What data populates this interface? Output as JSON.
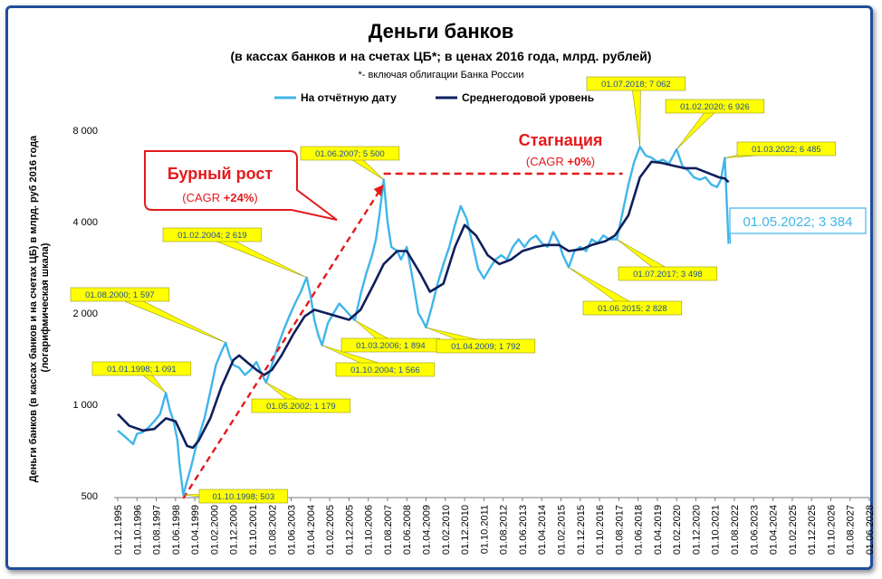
{
  "colors": {
    "frame": "#1f4e9a",
    "series_actual": "#3fb6ea",
    "series_avg": "#0d1f5c",
    "callout_fill": "#ffff00",
    "callout_text": "#1f4e9a",
    "accent_red": "#e31a1c",
    "big_label": "#3fb6ea"
  },
  "chart_data": {
    "type": "line",
    "title": "Деньги банков",
    "subtitle": "(в кассах банков и на счетах ЦБ*; в ценах 2016 года, млрд. рублей)",
    "footnote": "*- включая облигации Банка России",
    "ylabel": "Деньги банков (в кассах банков и на счетах ЦБ) в млрд. руб 2016 года (логарифмическая шкала)",
    "yscale": "log",
    "ylim": [
      500,
      9000
    ],
    "yticks": [
      500,
      1000,
      2000,
      4000,
      8000
    ],
    "ytick_labels": [
      "500",
      "1 000",
      "2 000",
      "4 000",
      "8 000"
    ],
    "xlim": [
      "1995-12",
      "2028-06"
    ],
    "xtick_labels": [
      "01.12.1995",
      "01.10.1996",
      "01.08.1997",
      "01.06.1998",
      "01.04.1999",
      "01.02.2000",
      "01.12.2000",
      "01.10.2001",
      "01.08.2002",
      "01.06.2003",
      "01.04.2004",
      "01.02.2005",
      "01.12.2005",
      "01.10.2006",
      "01.08.2007",
      "01.06.2008",
      "01.04.2009",
      "01.02.2010",
      "01.12.2010",
      "01.10.2011",
      "01.08.2012",
      "01.06.2013",
      "01.04.2014",
      "01.02.2015",
      "01.12.2015",
      "01.10.2016",
      "01.08.2017",
      "01.06.2018",
      "01.04.2019",
      "01.02.2020",
      "01.12.2020",
      "01.10.2021",
      "01.08.2022",
      "01.06.2023",
      "01.04.2024",
      "01.02.2025",
      "01.12.2025",
      "01.10.2026",
      "01.08.2027",
      "01.06.2028"
    ],
    "legend_position": "top",
    "grid": false,
    "series": [
      {
        "name": "На отчётную дату",
        "points": [
          [
            "1995-12",
            820
          ],
          [
            "1996-03",
            790
          ],
          [
            "1996-06",
            760
          ],
          [
            "1996-08",
            740
          ],
          [
            "1996-10",
            800
          ],
          [
            "1997-01",
            810
          ],
          [
            "1997-04",
            840
          ],
          [
            "1997-07",
            880
          ],
          [
            "1997-10",
            930
          ],
          [
            "1998-01",
            1091
          ],
          [
            "1998-03",
            960
          ],
          [
            "1998-05",
            880
          ],
          [
            "1998-07",
            760
          ],
          [
            "1998-08",
            640
          ],
          [
            "1998-10",
            503
          ],
          [
            "1998-12",
            560
          ],
          [
            "1999-02",
            620
          ],
          [
            "1999-04",
            700
          ],
          [
            "1999-06",
            780
          ],
          [
            "1999-09",
            900
          ],
          [
            "1999-12",
            1100
          ],
          [
            "2000-03",
            1350
          ],
          [
            "2000-06",
            1500
          ],
          [
            "2000-08",
            1597
          ],
          [
            "2000-10",
            1450
          ],
          [
            "2000-12",
            1350
          ],
          [
            "2001-03",
            1320
          ],
          [
            "2001-06",
            1250
          ],
          [
            "2001-09",
            1300
          ],
          [
            "2001-12",
            1380
          ],
          [
            "2002-03",
            1250
          ],
          [
            "2002-05",
            1179
          ],
          [
            "2002-08",
            1350
          ],
          [
            "2002-11",
            1550
          ],
          [
            "2003-02",
            1750
          ],
          [
            "2003-05",
            1950
          ],
          [
            "2003-08",
            2150
          ],
          [
            "2003-11",
            2350
          ],
          [
            "2004-02",
            2619
          ],
          [
            "2004-04",
            2300
          ],
          [
            "2004-06",
            1900
          ],
          [
            "2004-08",
            1700
          ],
          [
            "2004-10",
            1566
          ],
          [
            "2005-01",
            1850
          ],
          [
            "2005-04",
            2000
          ],
          [
            "2005-07",
            2150
          ],
          [
            "2005-10",
            2050
          ],
          [
            "2006-01",
            1950
          ],
          [
            "2006-03",
            1894
          ],
          [
            "2006-06",
            2300
          ],
          [
            "2006-09",
            2700
          ],
          [
            "2006-12",
            3100
          ],
          [
            "2007-02",
            3500
          ],
          [
            "2007-04",
            4300
          ],
          [
            "2007-06",
            5500
          ],
          [
            "2007-08",
            4000
          ],
          [
            "2007-10",
            3300
          ],
          [
            "2008-01",
            3200
          ],
          [
            "2008-03",
            3000
          ],
          [
            "2008-06",
            3300
          ],
          [
            "2008-09",
            2600
          ],
          [
            "2008-12",
            2000
          ],
          [
            "2009-02",
            1900
          ],
          [
            "2009-04",
            1792
          ],
          [
            "2009-07",
            2100
          ],
          [
            "2009-10",
            2500
          ],
          [
            "2010-01",
            2900
          ],
          [
            "2010-04",
            3300
          ],
          [
            "2010-07",
            3900
          ],
          [
            "2010-10",
            4500
          ],
          [
            "2011-01",
            4100
          ],
          [
            "2011-04",
            3400
          ],
          [
            "2011-07",
            2800
          ],
          [
            "2011-10",
            2600
          ],
          [
            "2012-01",
            2800
          ],
          [
            "2012-04",
            3000
          ],
          [
            "2012-07",
            3100
          ],
          [
            "2012-10",
            3000
          ],
          [
            "2013-01",
            3300
          ],
          [
            "2013-04",
            3500
          ],
          [
            "2013-07",
            3300
          ],
          [
            "2013-10",
            3500
          ],
          [
            "2014-01",
            3600
          ],
          [
            "2014-04",
            3400
          ],
          [
            "2014-07",
            3300
          ],
          [
            "2014-10",
            3700
          ],
          [
            "2015-01",
            3400
          ],
          [
            "2015-03",
            3100
          ],
          [
            "2015-06",
            2828
          ],
          [
            "2015-09",
            3200
          ],
          [
            "2015-12",
            3300
          ],
          [
            "2016-03",
            3200
          ],
          [
            "2016-06",
            3500
          ],
          [
            "2016-09",
            3400
          ],
          [
            "2016-12",
            3600
          ],
          [
            "2017-03",
            3500
          ],
          [
            "2017-07",
            3498
          ],
          [
            "2017-10",
            4300
          ],
          [
            "2018-01",
            5300
          ],
          [
            "2018-04",
            6300
          ],
          [
            "2018-07",
            7062
          ],
          [
            "2018-10",
            6600
          ],
          [
            "2019-01",
            6500
          ],
          [
            "2019-04",
            6300
          ],
          [
            "2019-07",
            6400
          ],
          [
            "2019-10",
            6200
          ],
          [
            "2020-02",
            6926
          ],
          [
            "2020-05",
            6100
          ],
          [
            "2020-08",
            5900
          ],
          [
            "2020-11",
            5600
          ],
          [
            "2021-02",
            5500
          ],
          [
            "2021-05",
            5600
          ],
          [
            "2021-08",
            5300
          ],
          [
            "2021-11",
            5200
          ],
          [
            "2022-01",
            5500
          ],
          [
            "2022-03",
            6485
          ],
          [
            "2022-05",
            3384
          ]
        ]
      },
      {
        "name": "Среднегодовой уровень",
        "points": [
          [
            "1995-12",
            930
          ],
          [
            "1996-06",
            850
          ],
          [
            "1997-01",
            820
          ],
          [
            "1997-07",
            830
          ],
          [
            "1998-01",
            900
          ],
          [
            "1998-06",
            880
          ],
          [
            "1998-12",
            730
          ],
          [
            "1999-03",
            720
          ],
          [
            "1999-06",
            760
          ],
          [
            "1999-12",
            900
          ],
          [
            "2000-06",
            1150
          ],
          [
            "2000-12",
            1400
          ],
          [
            "2001-03",
            1450
          ],
          [
            "2001-07",
            1380
          ],
          [
            "2001-12",
            1300
          ],
          [
            "2002-04",
            1250
          ],
          [
            "2002-08",
            1300
          ],
          [
            "2003-01",
            1450
          ],
          [
            "2003-07",
            1700
          ],
          [
            "2004-01",
            1950
          ],
          [
            "2004-06",
            2050
          ],
          [
            "2004-12",
            2000
          ],
          [
            "2005-06",
            1950
          ],
          [
            "2005-12",
            1900
          ],
          [
            "2006-06",
            2050
          ],
          [
            "2007-01",
            2500
          ],
          [
            "2007-06",
            2900
          ],
          [
            "2008-01",
            3200
          ],
          [
            "2008-06",
            3200
          ],
          [
            "2009-01",
            2700
          ],
          [
            "2009-06",
            2350
          ],
          [
            "2010-01",
            2500
          ],
          [
            "2010-07",
            3300
          ],
          [
            "2010-12",
            3900
          ],
          [
            "2011-06",
            3600
          ],
          [
            "2011-12",
            3100
          ],
          [
            "2012-06",
            2900
          ],
          [
            "2012-12",
            3000
          ],
          [
            "2013-06",
            3200
          ],
          [
            "2014-01",
            3300
          ],
          [
            "2014-06",
            3350
          ],
          [
            "2015-01",
            3350
          ],
          [
            "2015-06",
            3200
          ],
          [
            "2016-01",
            3250
          ],
          [
            "2016-06",
            3350
          ],
          [
            "2017-01",
            3450
          ],
          [
            "2017-06",
            3600
          ],
          [
            "2018-01",
            4200
          ],
          [
            "2018-07",
            5600
          ],
          [
            "2019-01",
            6300
          ],
          [
            "2019-06",
            6250
          ],
          [
            "2020-01",
            6100
          ],
          [
            "2020-06",
            6000
          ],
          [
            "2020-12",
            6000
          ],
          [
            "2021-06",
            5800
          ],
          [
            "2021-12",
            5600
          ],
          [
            "2022-03",
            5550
          ],
          [
            "2022-05",
            5400
          ]
        ]
      }
    ],
    "callouts": [
      {
        "text": "01.01.1998;  1 091"
      },
      {
        "text": "01.10.1998;  503"
      },
      {
        "text": "01.08.2000;  1 597"
      },
      {
        "text": "01.05.2002;  1 179"
      },
      {
        "text": "01.02.2004;  2 619"
      },
      {
        "text": "01.10.2004;  1 566"
      },
      {
        "text": "01.03.2006;  1 894"
      },
      {
        "text": "01.06.2007;  5 500"
      },
      {
        "text": "01.04.2009;  1 792"
      },
      {
        "text": "01.06.2015;  2 828"
      },
      {
        "text": "01.07.2017;  3 498"
      },
      {
        "text": "01.07.2018;  7 062"
      },
      {
        "text": "01.02.2020;  6 926"
      },
      {
        "text": "01.03.2022;  6 485"
      }
    ],
    "last_label": "01.05.2022;  3 384",
    "annotations": {
      "growth_title": "Бурный рост",
      "growth_cagr_prefix": "(CAGR ",
      "growth_cagr_value": "+24%",
      "growth_cagr_suffix": ")",
      "stag_title": "Стагнация",
      "stag_cagr_prefix": "(CAGR ",
      "stag_cagr_value": "+0%",
      "stag_cagr_suffix": ")"
    }
  }
}
